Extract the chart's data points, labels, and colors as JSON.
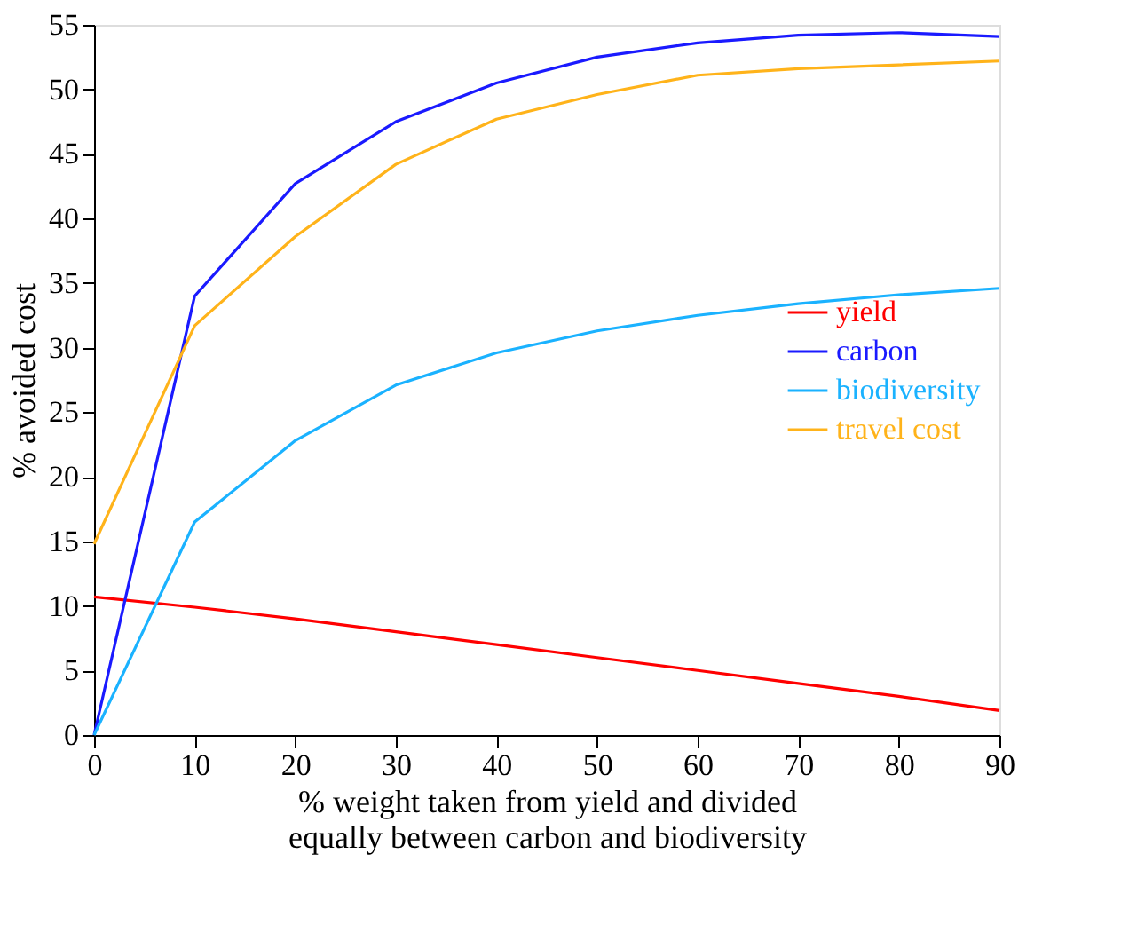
{
  "chart_data": {
    "type": "line",
    "xlabel": "% weight taken from yield and divided\nequally between carbon and biodiversity",
    "ylabel": "% avoided cost",
    "x": [
      0,
      10,
      20,
      30,
      40,
      50,
      60,
      70,
      80,
      90
    ],
    "series": [
      {
        "name": "yield",
        "color": "#ff0000",
        "values": [
          10.7,
          9.9,
          9.0,
          8.0,
          7.0,
          6.0,
          5.0,
          4.0,
          3.0,
          1.9
        ]
      },
      {
        "name": "carbon",
        "color": "#1a1aff",
        "values": [
          0,
          34.0,
          42.7,
          47.5,
          50.5,
          52.5,
          53.6,
          54.2,
          54.4,
          54.1
        ]
      },
      {
        "name": "biodiversity",
        "color": "#1ab2ff",
        "values": [
          0,
          16.5,
          22.8,
          27.1,
          29.6,
          31.3,
          32.5,
          33.4,
          34.1,
          34.6
        ]
      },
      {
        "name": "travel cost",
        "color": "#ffb31a",
        "values": [
          14.8,
          31.7,
          38.6,
          44.2,
          47.7,
          49.6,
          51.1,
          51.6,
          51.9,
          52.2
        ]
      }
    ],
    "xlim": [
      0,
      90
    ],
    "xticks": [
      0,
      10,
      20,
      30,
      40,
      50,
      60,
      70,
      80,
      90
    ],
    "ylim": [
      0,
      55
    ],
    "yticks": [
      0,
      5,
      10,
      15,
      20,
      25,
      30,
      35,
      40,
      45,
      50,
      55
    ],
    "grid": false,
    "legend": "right",
    "marker": "none",
    "line_style": "solid"
  }
}
